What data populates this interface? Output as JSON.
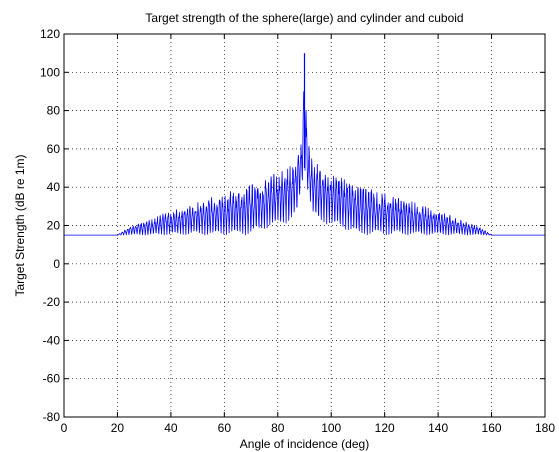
{
  "chart_data": {
    "type": "line",
    "title": "Target strength of the sphere(large) and cylinder and cuboid",
    "xlabel": "Angle of incidence (deg)",
    "ylabel": "Target Strength (dB re 1m)",
    "xlim": [
      0,
      180
    ],
    "ylim": [
      -80,
      120
    ],
    "xticks": [
      0,
      20,
      40,
      60,
      80,
      100,
      120,
      140,
      160,
      180
    ],
    "yticks": [
      -80,
      -60,
      -40,
      -20,
      0,
      20,
      40,
      60,
      80,
      100,
      120
    ],
    "grid": true,
    "grid_style": "dotted",
    "legend": "none",
    "series": [
      {
        "color": "#0000ff",
        "x": [
          0,
          20,
          25,
          30,
          35,
          40,
          45,
          50,
          55,
          60,
          65,
          70,
          75,
          80,
          85,
          87,
          89,
          90,
          91,
          93,
          95,
          100,
          105,
          110,
          115,
          120,
          125,
          130,
          135,
          140,
          145,
          150,
          155,
          160,
          180
        ],
        "y": [
          15,
          15,
          20,
          22,
          25,
          28,
          30,
          33,
          35,
          37,
          40,
          42,
          45,
          48,
          52,
          56,
          65,
          110,
          65,
          56,
          52,
          48,
          45,
          42,
          40,
          37,
          35,
          33,
          30,
          28,
          25,
          22,
          20,
          15,
          15
        ],
        "envelope_low_y": [
          15,
          15,
          15,
          15,
          15,
          15,
          15,
          15,
          15,
          15,
          15,
          15,
          18,
          20,
          22,
          25,
          40,
          50,
          40,
          25,
          22,
          20,
          18,
          15,
          15,
          15,
          15,
          15,
          15,
          15,
          15,
          15,
          15,
          15,
          15
        ]
      }
    ]
  }
}
